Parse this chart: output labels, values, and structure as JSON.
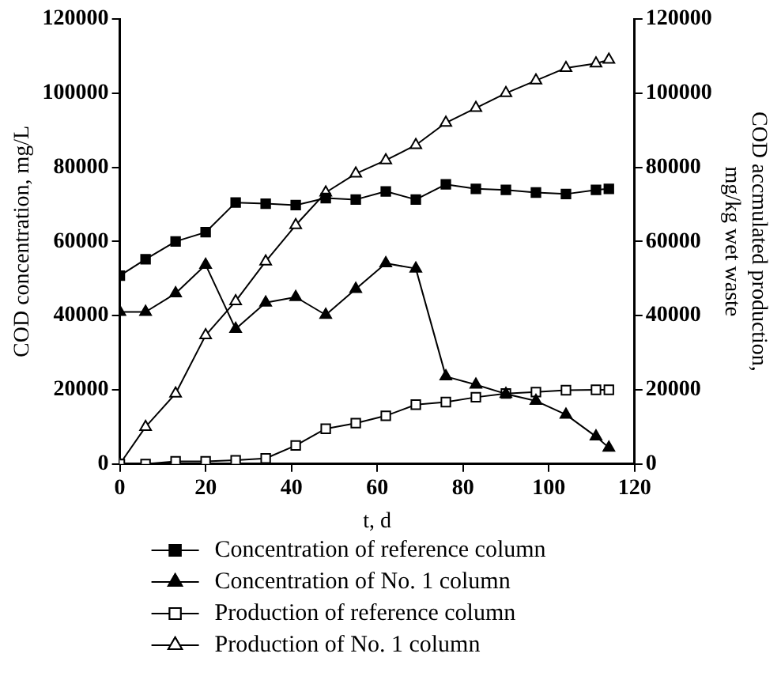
{
  "chart_data": {
    "type": "line",
    "xlabel": "t, d",
    "ylabel": "COD concentration, mg/L",
    "y2label": "COD accmulated production, mg/kg wet waste",
    "x": [
      0,
      6,
      13,
      20,
      27,
      34,
      41,
      48,
      55,
      62,
      69,
      76,
      83,
      90,
      97,
      104,
      111,
      114
    ],
    "xlim": [
      0,
      120
    ],
    "xticks": [
      0,
      20,
      40,
      60,
      80,
      100,
      120
    ],
    "ylim": [
      0,
      120000
    ],
    "yticks": [
      0,
      20000,
      40000,
      60000,
      80000,
      100000,
      120000
    ],
    "y2lim": [
      0,
      120000
    ],
    "y2ticks": [
      0,
      20000,
      40000,
      60000,
      80000,
      100000,
      120000
    ],
    "grid": false,
    "legend": "bottom",
    "line_style": "solid",
    "series": [
      {
        "name": "Concentration of reference column",
        "color": "#000000",
        "marker": "square",
        "values": [
          50800,
          55200,
          60000,
          62500,
          70500,
          70200,
          69800,
          71700,
          71300,
          73500,
          71300,
          75400,
          74200,
          73900,
          73200,
          72800,
          73900,
          74200
        ]
      },
      {
        "name": "Concentration of No. 1 column",
        "color": "#000000",
        "marker": "triangle",
        "values": [
          41000,
          41000,
          46000,
          53700,
          36400,
          43500,
          45000,
          40200,
          47200,
          54100,
          52700,
          23600,
          21400,
          18900,
          17000,
          13300,
          7400,
          4400
        ]
      },
      {
        "name": "Production of reference column",
        "color": "#000000",
        "marker": "square",
        "axis": "y2",
        "values": [
          0,
          0,
          700,
          700,
          1000,
          1500,
          5000,
          9500,
          11000,
          13000,
          16000,
          16700,
          18000,
          19000,
          19400,
          19900,
          20000,
          20000
        ]
      },
      {
        "name": "Production of No. 1 column",
        "color": "#000000",
        "marker": "triangle",
        "axis": "y2",
        "values": [
          0,
          10000,
          19000,
          34700,
          43900,
          54600,
          64400,
          73200,
          78300,
          81900,
          86000,
          92000,
          96000,
          100000,
          103400,
          106800,
          108000,
          109000
        ]
      }
    ]
  }
}
